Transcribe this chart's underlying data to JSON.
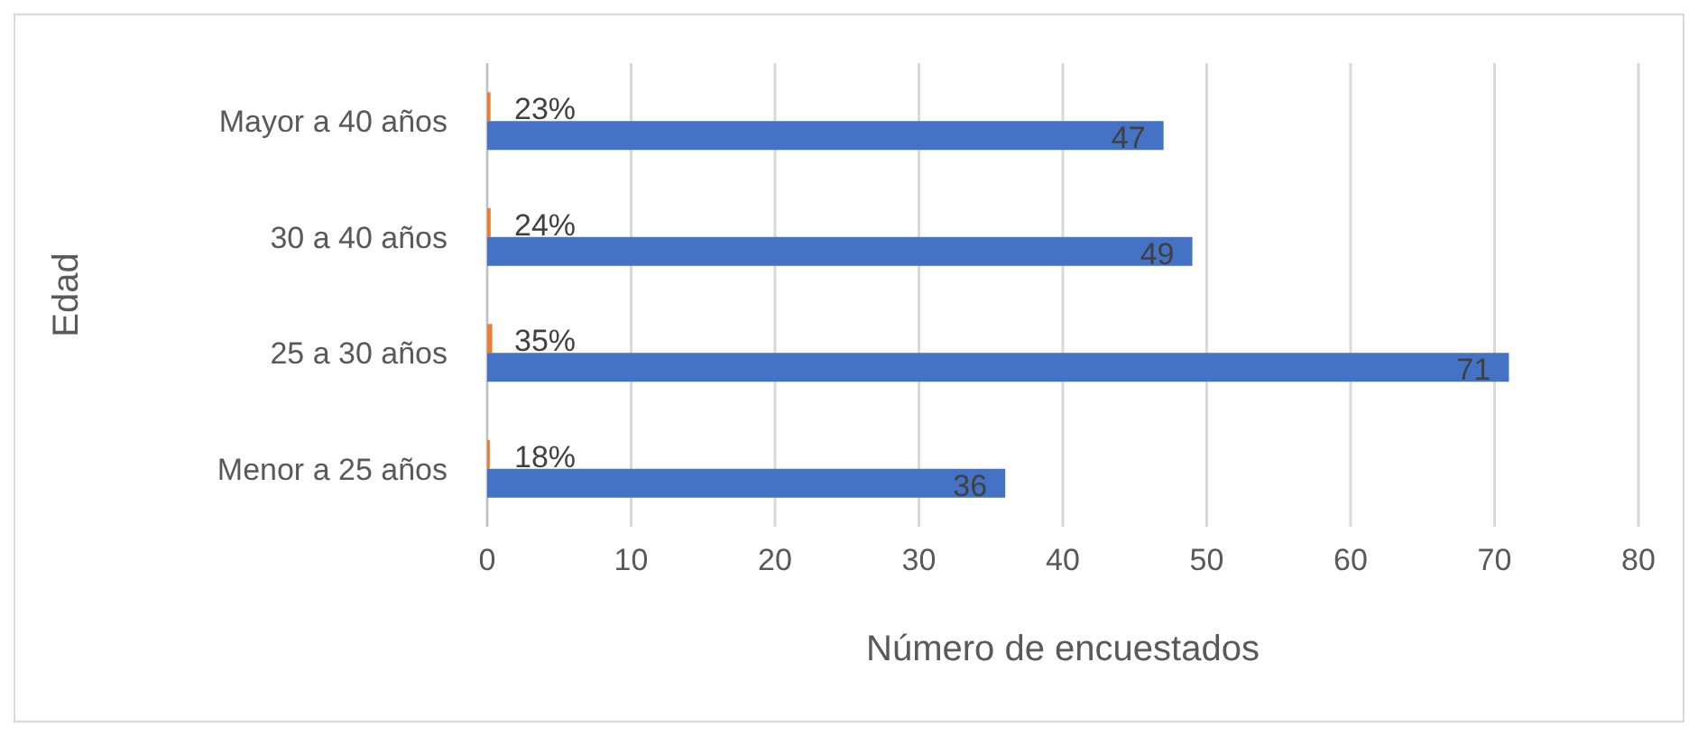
{
  "chart_data": {
    "type": "bar",
    "orientation": "horizontal",
    "xlabel": "Número de encuestados",
    "ylabel": "Edad",
    "categories": [
      "Mayor a 40 años",
      "30 a 40 años",
      "25 a 30 años",
      "Menor a 25 años"
    ],
    "series": [
      {
        "color": "#ed7d31",
        "values": [
          0.23,
          0.24,
          0.35,
          0.18
        ],
        "value_labels": [
          "23%",
          "24%",
          "35%",
          "18%"
        ]
      },
      {
        "color": "#4472c4",
        "values": [
          47,
          49,
          71,
          36
        ],
        "value_labels": [
          "47",
          "49",
          "71",
          "36"
        ]
      }
    ],
    "xlim": [
      0,
      80
    ],
    "xticks": [
      0,
      10,
      20,
      30,
      40,
      50,
      60,
      70,
      80
    ],
    "grid": "x"
  }
}
